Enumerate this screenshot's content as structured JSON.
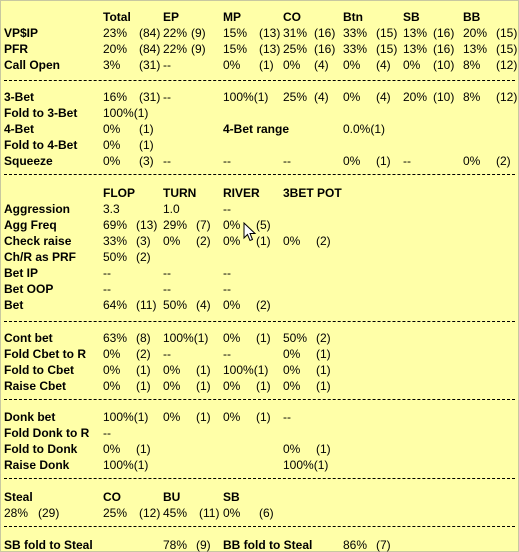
{
  "preflop": {
    "headers": [
      "Total",
      "EP",
      "MP",
      "CO",
      "Btn",
      "SB",
      "BB"
    ],
    "rows": [
      {
        "label": "VP$IP",
        "cells": [
          "23%",
          "(84)",
          "22%",
          "(9)",
          "15%",
          "(13)",
          "31%",
          "(16)",
          "33%",
          "(15)",
          "13%",
          "(16)",
          "20%",
          "(15)"
        ]
      },
      {
        "label": "PFR",
        "cells": [
          "20%",
          "(84)",
          "22%",
          "(9)",
          "15%",
          "(13)",
          "25%",
          "(16)",
          "33%",
          "(15)",
          "13%",
          "(16)",
          "13%",
          "(15)"
        ]
      },
      {
        "label": "Call Open",
        "cells": [
          "3%",
          "(31)",
          "--",
          "",
          "0%",
          "(1)",
          "0%",
          "(4)",
          "0%",
          "(4)",
          "0%",
          "(10)",
          "8%",
          "(12)"
        ]
      }
    ]
  },
  "threebet": {
    "rows": [
      {
        "label": "3-Bet",
        "cells": [
          "16%",
          "(31)",
          "--",
          "",
          "100%(1)",
          "",
          "25%",
          "(4)",
          "0%",
          "(4)",
          "20%",
          "(10)",
          "8%",
          "(12)"
        ]
      },
      {
        "label": "Fold to 3-Bet",
        "cells": [
          "100%(1)"
        ]
      },
      {
        "label": "4-Bet",
        "cells": [
          "0%",
          "(1)"
        ],
        "extra_label": "4-Bet range",
        "extra_value": "0.0%(1)"
      },
      {
        "label": "Fold to 4-Bet",
        "cells": [
          "0%",
          "(1)"
        ]
      },
      {
        "label": "Squeeze",
        "cells": [
          "0%",
          "(3)",
          "--",
          "",
          "--",
          "",
          "--",
          "",
          "0%",
          "(1)",
          "--",
          "",
          "0%",
          "(2)"
        ]
      }
    ]
  },
  "postflop": {
    "headers": [
      "FLOP",
      "TURN",
      "RIVER",
      "3BET POT"
    ],
    "rows": [
      {
        "label": "Aggression",
        "cells": [
          "3.3",
          "",
          "1.0",
          "",
          "--",
          "",
          "",
          ""
        ]
      },
      {
        "label": "Agg Freq",
        "cells": [
          "69%",
          "(13)",
          "29%",
          "(7)",
          "0%",
          "(5)",
          "",
          ""
        ]
      },
      {
        "label": "Check raise",
        "cells": [
          "33%",
          "(3)",
          "0%",
          "(2)",
          "0%",
          "(1)",
          "0%",
          "(2)"
        ]
      },
      {
        "label": "Ch/R as PRF",
        "cells": [
          "50%",
          "(2)",
          "",
          "",
          "",
          "",
          "",
          ""
        ]
      },
      {
        "label": "Bet IP",
        "cells": [
          "--",
          "",
          "--",
          "",
          "--",
          "",
          "",
          ""
        ]
      },
      {
        "label": "Bet OOP",
        "cells": [
          "--",
          "",
          "--",
          "",
          "--",
          "",
          "",
          ""
        ]
      },
      {
        "label": "Bet",
        "cells": [
          "64%",
          "(11)",
          "50%",
          "(4)",
          "0%",
          "(2)",
          "",
          ""
        ]
      }
    ]
  },
  "cbet": {
    "rows": [
      {
        "label": "Cont bet",
        "cells": [
          "63%",
          "(8)",
          "100%(1)",
          "",
          "0%",
          "(1)",
          "50%",
          "(2)"
        ]
      },
      {
        "label": "Fold Cbet to R",
        "cells": [
          "0%",
          "(2)",
          "--",
          "",
          "--",
          "",
          "0%",
          "(1)"
        ]
      },
      {
        "label": "Fold to Cbet",
        "cells": [
          "0%",
          "(1)",
          "0%",
          "(1)",
          "100%(1)",
          "",
          "0%",
          "(1)"
        ]
      },
      {
        "label": "Raise Cbet",
        "cells": [
          "0%",
          "(1)",
          "0%",
          "(1)",
          "0%",
          "(1)",
          "0%",
          "(1)"
        ]
      }
    ]
  },
  "donk": {
    "rows": [
      {
        "label": "Donk bet",
        "cells": [
          "100%(1)",
          "",
          "0%",
          "(1)",
          "0%",
          "(1)",
          "--",
          ""
        ]
      },
      {
        "label": "Fold Donk to R",
        "cells": [
          "--",
          "",
          "",
          "",
          "",
          "",
          "",
          ""
        ]
      },
      {
        "label": "Fold to Donk",
        "cells": [
          "0%",
          "(1)",
          "",
          "",
          "",
          "",
          "0%",
          "(1)"
        ]
      },
      {
        "label": "Raise Donk",
        "cells": [
          "100%(1)",
          "",
          "",
          "",
          "",
          "",
          "100%(1)",
          ""
        ]
      }
    ]
  },
  "steal": {
    "label": "Steal",
    "headers": [
      "CO",
      "BU",
      "SB"
    ],
    "total": [
      "28%",
      "(29)"
    ],
    "cells": [
      "25%",
      "(12)",
      "45%",
      "(11)",
      "0%",
      "(6)"
    ]
  },
  "footer": {
    "sb_label": "SB fold to Steal",
    "sb_value": "78%",
    "sb_count": "(9)",
    "bb_label": "BB fold to Steal",
    "bb_value": "86%",
    "bb_count": "(7)"
  }
}
